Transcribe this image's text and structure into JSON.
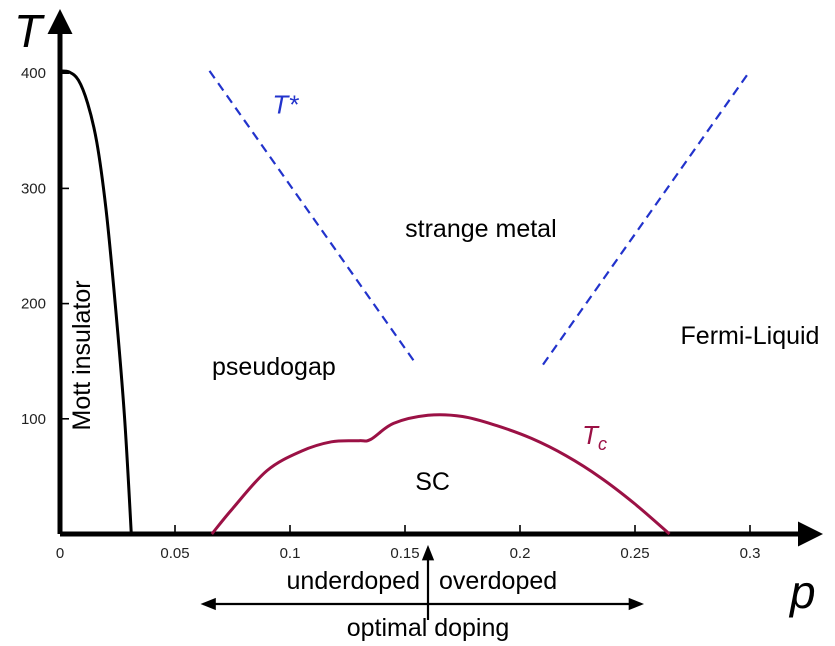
{
  "chart_data": {
    "type": "line",
    "xlabel": "p",
    "ylabel": "T",
    "xlim": [
      0,
      0.32
    ],
    "ylim": [
      0,
      400
    ],
    "x_ticks": [
      {
        "value": 0,
        "label": "0"
      },
      {
        "value": 0.05,
        "label": "0.05"
      },
      {
        "value": 0.1,
        "label": "0.1"
      },
      {
        "value": 0.15,
        "label": "0.15"
      },
      {
        "value": 0.2,
        "label": "0.2"
      },
      {
        "value": 0.25,
        "label": "0.25"
      },
      {
        "value": 0.3,
        "label": "0.3"
      }
    ],
    "y_ticks": [
      {
        "value": 100,
        "label": "100"
      },
      {
        "value": 200,
        "label": "200"
      },
      {
        "value": 300,
        "label": "300"
      },
      {
        "value": 400,
        "label": "400"
      }
    ],
    "grid": false,
    "series": [
      {
        "key": "neel",
        "name": "",
        "color": "#000000",
        "style": "solid",
        "points": [
          [
            0,
            402
          ],
          [
            0.004,
            401
          ],
          [
            0.008,
            394
          ],
          [
            0.012,
            374
          ],
          [
            0.016,
            340
          ],
          [
            0.02,
            282
          ],
          [
            0.024,
            200
          ],
          [
            0.028,
            103
          ],
          [
            0.031,
            0
          ]
        ]
      },
      {
        "key": "tstar_left",
        "name": "T*",
        "color": "#2233cc",
        "style": "dashed",
        "points": [
          [
            0.065,
            402
          ],
          [
            0.155,
            147
          ]
        ]
      },
      {
        "key": "tstar_right",
        "name": "",
        "color": "#2233cc",
        "style": "dashed",
        "points": [
          [
            0.21,
            147
          ],
          [
            0.3,
            402
          ]
        ]
      },
      {
        "key": "tc",
        "name": "Tc",
        "color": "#9b1145",
        "style": "solid",
        "points": [
          [
            0.066,
            0
          ],
          [
            0.075,
            22
          ],
          [
            0.09,
            55
          ],
          [
            0.105,
            72
          ],
          [
            0.118,
            80
          ],
          [
            0.13,
            81
          ],
          [
            0.135,
            82
          ],
          [
            0.145,
            96
          ],
          [
            0.16,
            103
          ],
          [
            0.175,
            102
          ],
          [
            0.19,
            94
          ],
          [
            0.205,
            83
          ],
          [
            0.22,
            68
          ],
          [
            0.235,
            49
          ],
          [
            0.25,
            26
          ],
          [
            0.265,
            0
          ]
        ]
      }
    ],
    "annotations": {
      "tstar": {
        "text": "T*",
        "x": 0.098,
        "y": 365,
        "color": "#2233cc"
      },
      "tc": {
        "main": "T",
        "sub": "c",
        "x": 0.227,
        "y": 78,
        "color": "#9b1145"
      },
      "strange_metal": {
        "text": "strange metal",
        "x": 0.183,
        "y": 258
      },
      "fermi_liquid": {
        "text": "Fermi-Liquid",
        "x": 0.3,
        "y": 165
      },
      "pseudogap": {
        "text": "pseudogap",
        "x": 0.093,
        "y": 138
      },
      "mott": {
        "text": "Mott insulator",
        "x": 0.013,
        "y": 155
      },
      "sc": {
        "text": "SC",
        "x": 0.162,
        "y": 38
      }
    },
    "doping_scale": {
      "underdoped": "underdoped",
      "overdoped": "overdoped",
      "optimal": "optimal doping",
      "optimal_p": 0.16,
      "arrow_from": 0.065,
      "arrow_to": 0.25
    }
  }
}
